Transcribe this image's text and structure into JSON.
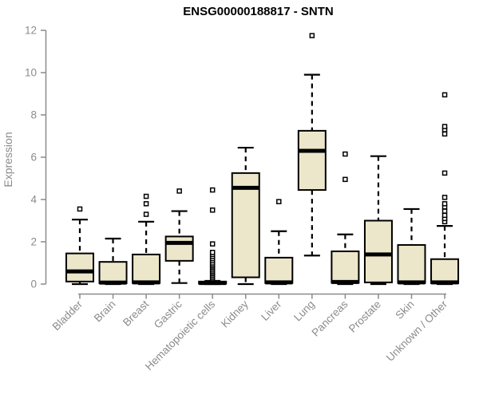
{
  "title": "ENSG00000188817 - SNTN",
  "colors": {
    "box_fill": "#ECE7CA",
    "box_stroke": "#000000",
    "median": "#000000",
    "axis": "#8B8B8B",
    "outlier_fill": "#FFFFFF",
    "title_color": "#000000",
    "background": "#FFFFFF"
  },
  "chart_data": {
    "type": "boxplot",
    "title": "ENSG00000188817 - SNTN",
    "xlabel": "",
    "ylabel": "Expression",
    "ylim": [
      0,
      12
    ],
    "yticks": [
      0,
      2,
      4,
      6,
      8,
      10,
      12
    ],
    "grid": false,
    "legend": false,
    "categories": [
      "Bladder",
      "Brain",
      "Breast",
      "Gastric",
      "Hematopoietic cells",
      "Kidney",
      "Liver",
      "Lung",
      "Pancreas",
      "Prostate",
      "Skin",
      "Unknown / Other"
    ],
    "boxes": [
      {
        "category": "Bladder",
        "whisker_low": 0,
        "q1": 0.12,
        "median": 0.6,
        "q3": 1.45,
        "whisker_high": 3.05,
        "outliers": [
          3.55
        ]
      },
      {
        "category": "Brain",
        "whisker_low": 0,
        "q1": 0.04,
        "median": 0.07,
        "q3": 1.05,
        "whisker_high": 2.15,
        "outliers": []
      },
      {
        "category": "Breast",
        "whisker_low": 0,
        "q1": 0.05,
        "median": 0.08,
        "q3": 1.4,
        "whisker_high": 2.95,
        "outliers": [
          3.3,
          3.8,
          4.15
        ]
      },
      {
        "category": "Gastric",
        "whisker_low": 0.05,
        "q1": 1.1,
        "median": 1.95,
        "q3": 2.25,
        "whisker_high": 3.45,
        "outliers": [
          4.4
        ]
      },
      {
        "category": "Hematopoietic cells",
        "whisker_low": 0,
        "q1": 0.02,
        "median": 0.05,
        "q3": 0.12,
        "whisker_high": 0.15,
        "outliers": [
          0.25,
          0.32,
          0.4,
          0.48,
          0.55,
          0.62,
          0.7,
          0.78,
          0.85,
          0.92,
          1.0,
          1.1,
          1.2,
          1.3,
          1.4,
          1.5,
          1.9,
          3.5,
          4.45
        ]
      },
      {
        "category": "Kidney",
        "whisker_low": 0,
        "q1": 0.32,
        "median": 4.55,
        "q3": 5.25,
        "whisker_high": 6.45,
        "outliers": []
      },
      {
        "category": "Liver",
        "whisker_low": 0,
        "q1": 0.05,
        "median": 0.08,
        "q3": 1.25,
        "whisker_high": 2.5,
        "outliers": [
          3.9
        ]
      },
      {
        "category": "Lung",
        "whisker_low": 1.35,
        "q1": 4.45,
        "median": 6.3,
        "q3": 7.25,
        "whisker_high": 9.9,
        "outliers": [
          11.75
        ]
      },
      {
        "category": "Pancreas",
        "whisker_low": 0,
        "q1": 0.06,
        "median": 0.1,
        "q3": 1.55,
        "whisker_high": 2.35,
        "outliers": [
          4.95,
          6.15
        ]
      },
      {
        "category": "Prostate",
        "whisker_low": 0,
        "q1": 0.08,
        "median": 1.4,
        "q3": 3.0,
        "whisker_high": 6.05,
        "outliers": []
      },
      {
        "category": "Skin",
        "whisker_low": 0,
        "q1": 0.05,
        "median": 0.08,
        "q3": 1.85,
        "whisker_high": 3.55,
        "outliers": []
      },
      {
        "category": "Unknown / Other",
        "whisker_low": 0,
        "q1": 0.04,
        "median": 0.08,
        "q3": 1.18,
        "whisker_high": 2.75,
        "outliers": [
          2.95,
          3.1,
          3.25,
          3.45,
          3.65,
          3.8,
          4.1,
          5.25,
          7.1,
          7.3,
          7.45,
          8.95
        ]
      }
    ]
  }
}
